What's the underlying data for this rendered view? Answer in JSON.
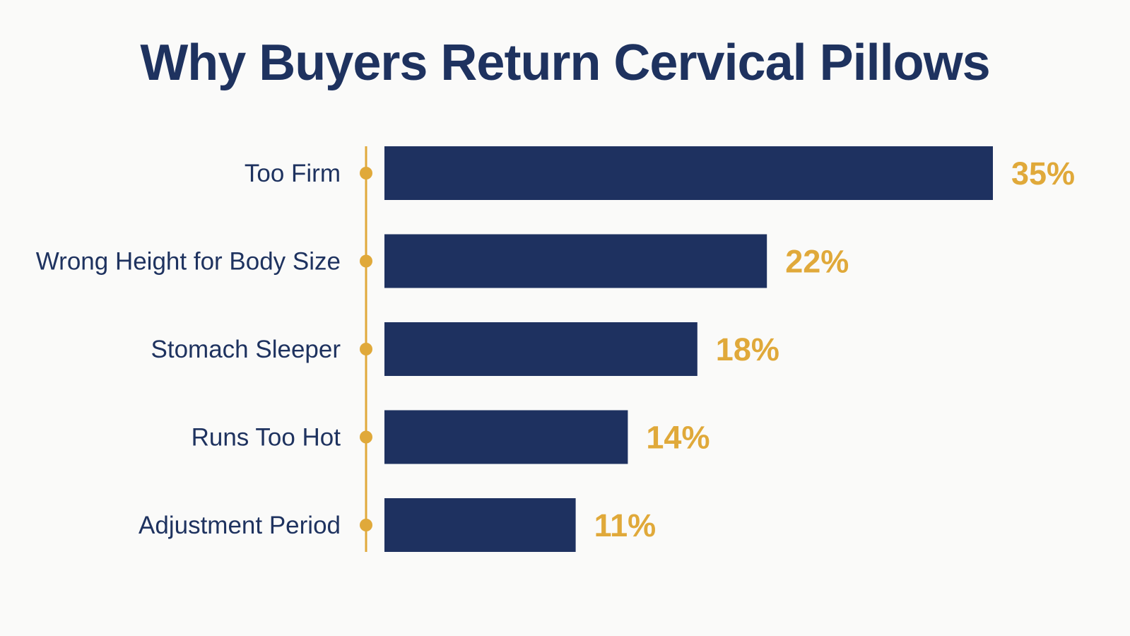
{
  "colors": {
    "bar": "#1e3160",
    "accent": "#e0a93a",
    "text": "#1e325f",
    "background": "#fafaf9"
  },
  "chart_data": {
    "type": "bar",
    "orientation": "horizontal",
    "title": "Why Buyers Return Cervical Pillows",
    "xlabel": "",
    "ylabel": "",
    "unit": "%",
    "grid": false,
    "legend": "none",
    "xlim": [
      0,
      35
    ],
    "categories": [
      "Too Firm",
      "Wrong Height for Body Size",
      "Stomach Sleeper",
      "Runs Too Hot",
      "Adjustment Period"
    ],
    "values": [
      35,
      22,
      18,
      14,
      11
    ],
    "value_labels": [
      "35%",
      "22%",
      "18%",
      "14%",
      "11%"
    ]
  }
}
